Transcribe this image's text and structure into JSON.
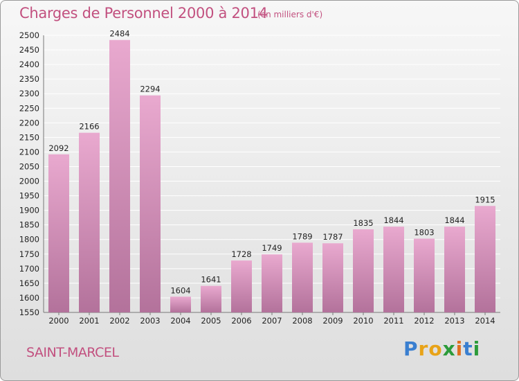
{
  "page": {
    "title": "Charges de Personnel 2000 à 2014",
    "subtitle": "(en milliers d'€)",
    "commune": "SAINT-MARCEL",
    "brand": "Proxiti"
  },
  "colors": {
    "title": "#c2507f",
    "bar_top": "#e9a9cf",
    "bar_bottom": "#b3729b",
    "brand_letters": [
      "#3a7fd0",
      "#e8a318",
      "#e8a318",
      "#2c9b3a",
      "#e07020",
      "#3a7fd0",
      "#2c9b3a"
    ]
  },
  "chart_data": {
    "type": "bar",
    "title": "Charges de Personnel 2000 à 2014",
    "categories": [
      "2000",
      "2001",
      "2002",
      "2003",
      "2004",
      "2005",
      "2006",
      "2007",
      "2008",
      "2009",
      "2010",
      "2011",
      "2012",
      "2013",
      "2014"
    ],
    "values": [
      2092,
      2166,
      2484,
      2294,
      1604,
      1641,
      1728,
      1749,
      1789,
      1787,
      1835,
      1844,
      1803,
      1844,
      1915
    ],
    "ylim": [
      1550,
      2500
    ],
    "yticks": [
      1550,
      1600,
      1650,
      1700,
      1750,
      1800,
      1850,
      1900,
      1950,
      2000,
      2050,
      2100,
      2150,
      2200,
      2250,
      2300,
      2350,
      2400,
      2450,
      2500
    ],
    "grid": true,
    "data_labels": true
  }
}
